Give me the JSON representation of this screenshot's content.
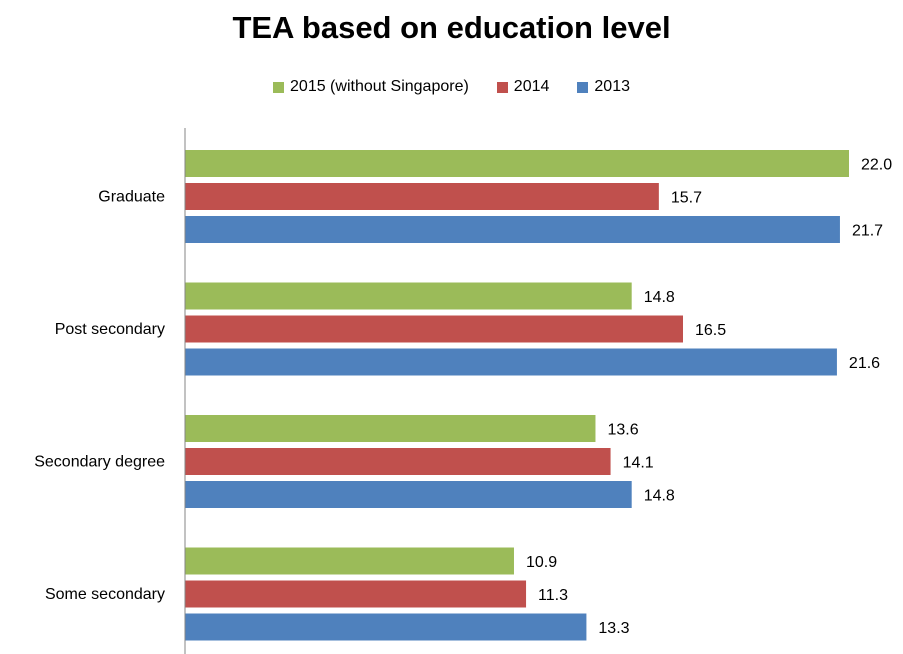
{
  "chart_data": {
    "type": "bar",
    "orientation": "horizontal",
    "title": "TEA based on education level",
    "categories": [
      "Graduate",
      "Post secondary",
      "Secondary degree",
      "Some secondary"
    ],
    "series": [
      {
        "name": "2015 (without Singapore)",
        "color": "#9BBB59",
        "values": [
          22.0,
          14.8,
          13.6,
          10.9
        ]
      },
      {
        "name": "2014",
        "color": "#C0504D",
        "values": [
          15.7,
          16.5,
          14.1,
          11.3
        ]
      },
      {
        "name": "2013",
        "color": "#4F81BD",
        "values": [
          21.7,
          21.6,
          14.8,
          13.3
        ]
      }
    ],
    "legend_position": "top",
    "grid": false,
    "xlim": [
      0,
      22.0
    ]
  }
}
